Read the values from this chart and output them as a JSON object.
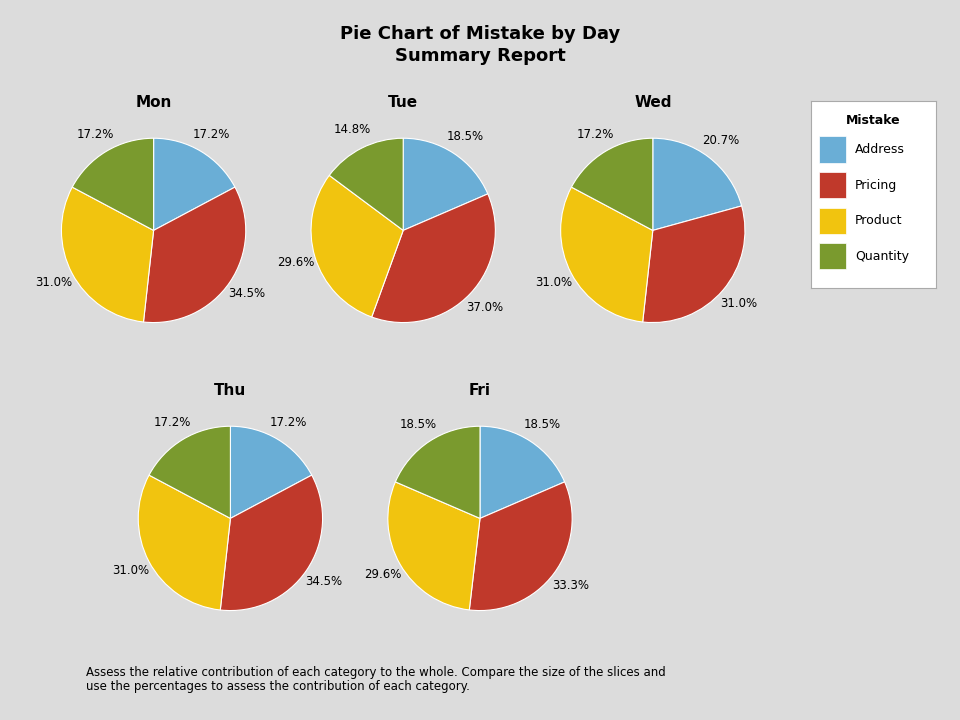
{
  "title": "Pie Chart of Mistake by Day",
  "subtitle": "Summary Report",
  "days": [
    "Mon",
    "Tue",
    "Wed",
    "Thu",
    "Fri"
  ],
  "categories": [
    "Address",
    "Pricing",
    "Product",
    "Quantity"
  ],
  "colors": [
    "#6aaed6",
    "#c0392b",
    "#f1c40f",
    "#7a9a2e"
  ],
  "data": {
    "Mon": [
      17.2,
      34.5,
      31.0,
      17.2
    ],
    "Tue": [
      18.5,
      37.0,
      29.6,
      14.8
    ],
    "Wed": [
      20.7,
      31.0,
      31.0,
      17.2
    ],
    "Thu": [
      17.2,
      34.5,
      31.0,
      17.2
    ],
    "Fri": [
      18.5,
      33.3,
      29.6,
      18.5
    ]
  },
  "bg_color": "#dcdcdc",
  "annotation_line1": "Assess the relative contribution of each category to the whole. Compare the size of the slices and",
  "annotation_line2": "use the percentages to assess the contribution of each category.",
  "legend_title": "Mistake"
}
